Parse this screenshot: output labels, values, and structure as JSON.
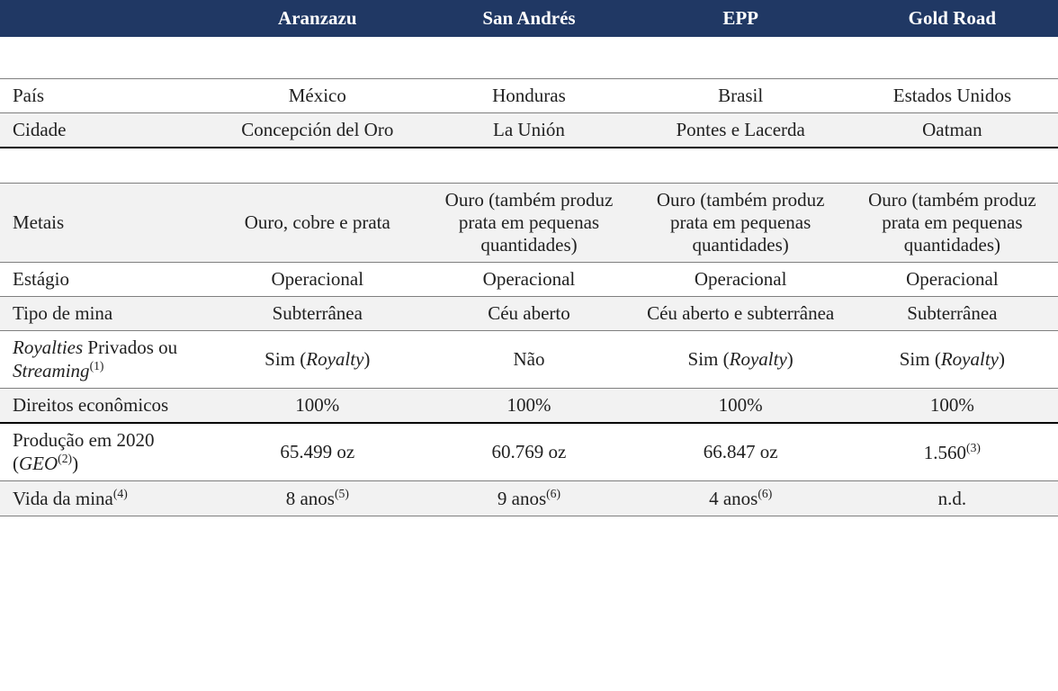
{
  "table": {
    "header_bg": "#203864",
    "header_color": "#ffffff",
    "row_bg_alt": "#f2f2f2",
    "border_color": "#7f7f7f",
    "heavy_border_color": "#000000",
    "text_color": "#212121",
    "font_family": "Times New Roman",
    "col_widths_pct": [
      20,
      20,
      20,
      20,
      20
    ],
    "columns": [
      "",
      "Aranzazu",
      "San Andrés",
      "EPP",
      "Gold Road"
    ],
    "groups": [
      {
        "rows": [
          {
            "label_html": "País",
            "values": [
              "México",
              "Honduras",
              "Brasil",
              "Estados Unidos"
            ],
            "shaded": false
          },
          {
            "label_html": "Cidade",
            "values": [
              "Concepción del Oro",
              "La Unión",
              "Pontes e Lacerda",
              "Oatman"
            ],
            "shaded": true
          }
        ]
      },
      {
        "rows": [
          {
            "label_html": "Metais",
            "values": [
              "Ouro, cobre e prata",
              "Ouro (também produz prata em pequenas quantidades)",
              "Ouro (também produz prata em pequenas quantidades)",
              "Ouro (também produz prata em pequenas quantidades)"
            ],
            "shaded": true
          },
          {
            "label_html": "Estágio",
            "values": [
              "Operacional",
              "Operacional",
              "Operacional",
              "Operacional"
            ],
            "shaded": false
          },
          {
            "label_html": "Tipo de mina",
            "values": [
              "Subterrânea",
              "Céu aberto",
              "Céu aberto e subterrânea",
              "Subterrânea"
            ],
            "shaded": true
          },
          {
            "label_html": "<i>Royalties</i> Privados ou <i>Streaming</i><sup>(1)</sup>",
            "values": [
              "Sim (<i>Royalty</i>)",
              "Não",
              "Sim (<i>Royalty</i>)",
              "Sim (<i>Royalty</i>)"
            ],
            "shaded": false
          },
          {
            "label_html": "Direitos econômicos",
            "values": [
              "100%",
              "100%",
              "100%",
              "100%"
            ],
            "shaded": true
          },
          {
            "label_html": "Produção em 2020 (<i>GEO</i><sup>(2)</sup>)",
            "values": [
              "65.499 oz",
              "60.769 oz",
              "66.847 oz",
              "1.560<sup>(3)</sup>"
            ],
            "shaded": false
          },
          {
            "label_html": "Vida da mina<sup>(4)</sup>",
            "values": [
              "8 anos<sup>(5)</sup>",
              "9 anos<sup>(6)</sup>",
              "4 anos<sup>(6)</sup>",
              "n.d."
            ],
            "shaded": true
          }
        ]
      }
    ]
  }
}
